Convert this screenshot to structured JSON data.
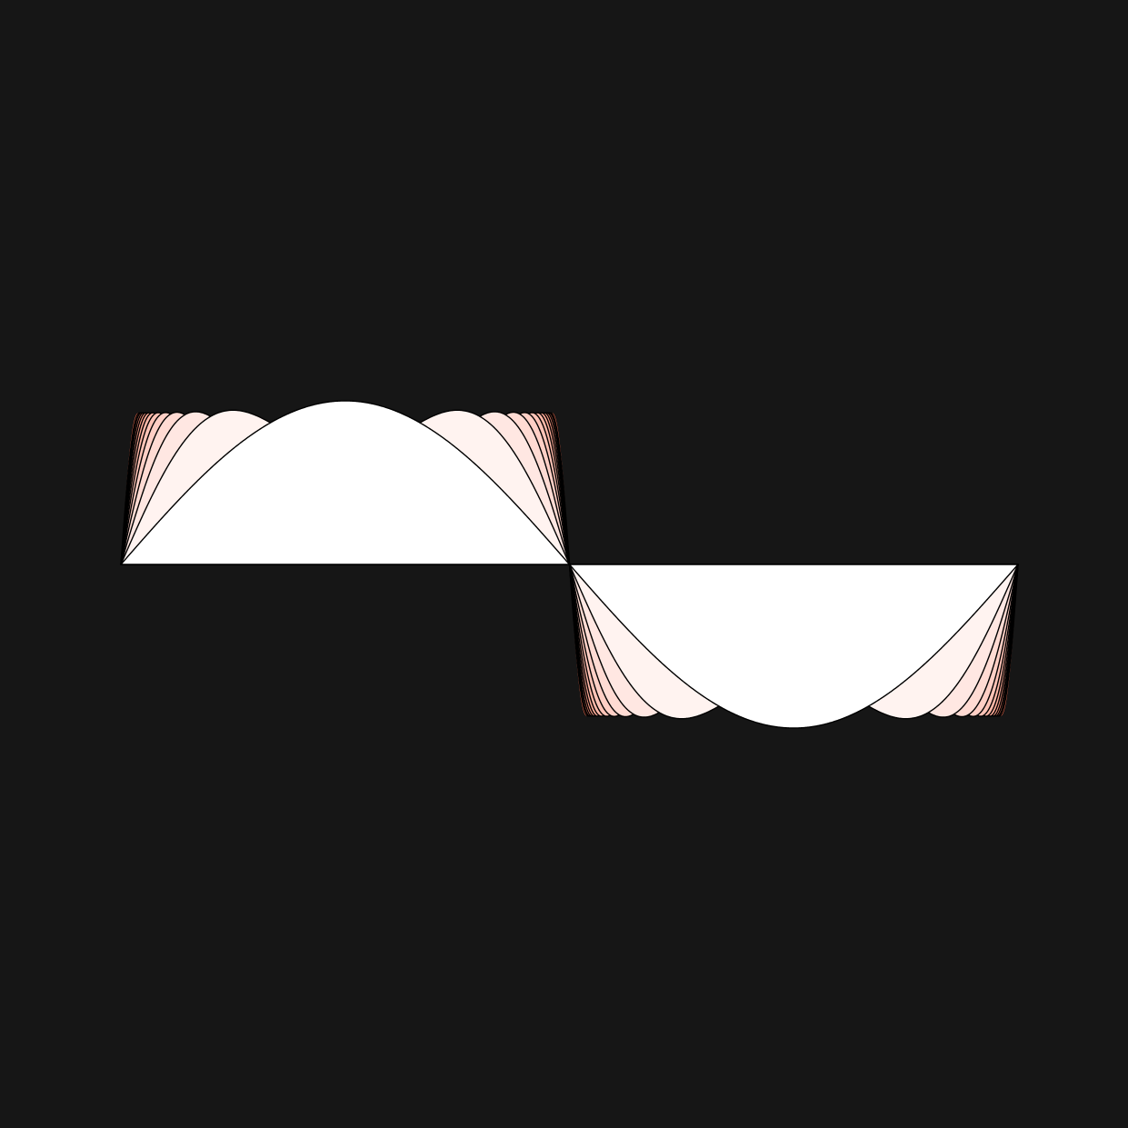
{
  "figure": {
    "background": "#161616",
    "curve_stroke": "#000000",
    "inner_fill": "#ffffff",
    "outer_fill": "#ff7050",
    "partial_sums": [
      1,
      3,
      5,
      7,
      9,
      11,
      13,
      15,
      17,
      19,
      21,
      23,
      25
    ]
  }
}
